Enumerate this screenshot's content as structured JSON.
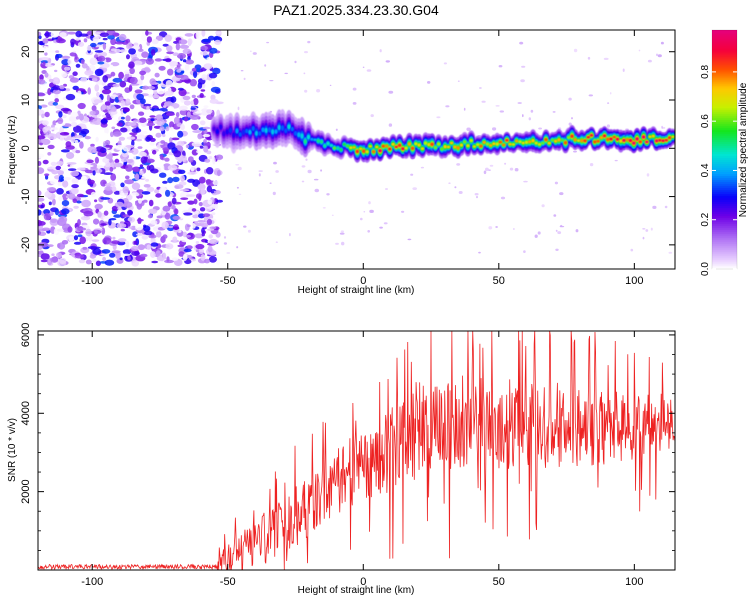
{
  "title": "PAZ1.2025.334.23.30.G04",
  "chart_data": [
    {
      "type": "heatmap",
      "xlabel": "Height of straight line (km)",
      "ylabel": "Frequency (Hz)",
      "xlim": [
        -120,
        115
      ],
      "ylim": [
        -25,
        24.5
      ],
      "x_ticks": [
        -100,
        -50,
        0,
        50,
        100
      ],
      "y_ticks": [
        -20,
        -10,
        0,
        10,
        20
      ],
      "colorbar": {
        "label": "Normalized spectral amplitude",
        "range": [
          0,
          0.97
        ],
        "ticks": [
          0.0,
          0.2,
          0.4,
          0.6,
          0.8
        ],
        "tick_labels": [
          "0.0",
          "0.2",
          "0.4",
          "0.6",
          "0.8"
        ]
      },
      "noise_region_x": [
        -120,
        -53
      ],
      "noise_region_y": [
        -24,
        24
      ],
      "noise_amplitude_range": [
        0.0,
        0.35
      ],
      "signal_ridge": {
        "x": [
          -55,
          -45,
          -35,
          -28,
          -22,
          -15,
          -5,
          0,
          10,
          20,
          30,
          40,
          50,
          60,
          70,
          80,
          90,
          100,
          110,
          115
        ],
        "freq": [
          4,
          3,
          4,
          4,
          2,
          1,
          0,
          -0.5,
          0.5,
          0.5,
          0.5,
          1,
          1,
          1.5,
          1.5,
          2,
          2,
          1.5,
          2,
          2
        ],
        "peak_amplitude": [
          0.3,
          0.4,
          0.45,
          0.45,
          0.5,
          0.55,
          0.75,
          0.9,
          0.95,
          0.85,
          0.8,
          0.8,
          0.85,
          0.85,
          0.8,
          0.85,
          0.9,
          0.95,
          0.95,
          0.9
        ]
      }
    },
    {
      "type": "line",
      "xlabel": "Height of straight line (km)",
      "ylabel": "SNR (10 * v/v)",
      "xlim": [
        -120,
        115
      ],
      "ylim": [
        0,
        6100
      ],
      "x_ticks": [
        -100,
        -50,
        0,
        50,
        100
      ],
      "y_ticks": [
        2000,
        4000,
        6000
      ],
      "color": "#ee2222",
      "series": [
        {
          "name": "SNR",
          "envelope": {
            "x": [
              -120,
              -60,
              -55,
              -50,
              -45,
              -40,
              -35,
              -30,
              -25,
              -20,
              -15,
              -10,
              -5,
              0,
              5,
              10,
              15,
              20,
              25,
              30,
              35,
              40,
              50,
              60,
              70,
              80,
              90,
              100,
              110,
              115
            ],
            "mean": [
              80,
              80,
              80,
              300,
              500,
              700,
              900,
              1100,
              1400,
              1700,
              2000,
              2300,
              2500,
              2700,
              2900,
              3100,
              3400,
              3600,
              3700,
              3800,
              3800,
              3800,
              3800,
              3800,
              3800,
              3700,
              3700,
              3700,
              3800,
              3800
            ],
            "spread": [
              60,
              60,
              60,
              500,
              600,
              700,
              800,
              800,
              900,
              900,
              900,
              1000,
              1000,
              1000,
              1100,
              1200,
              1300,
              1500,
              1500,
              1500,
              1500,
              1400,
              1400,
              1300,
              1300,
              1200,
              1100,
              1000,
              900,
              900
            ]
          },
          "peak_max": 6100
        }
      ]
    }
  ]
}
